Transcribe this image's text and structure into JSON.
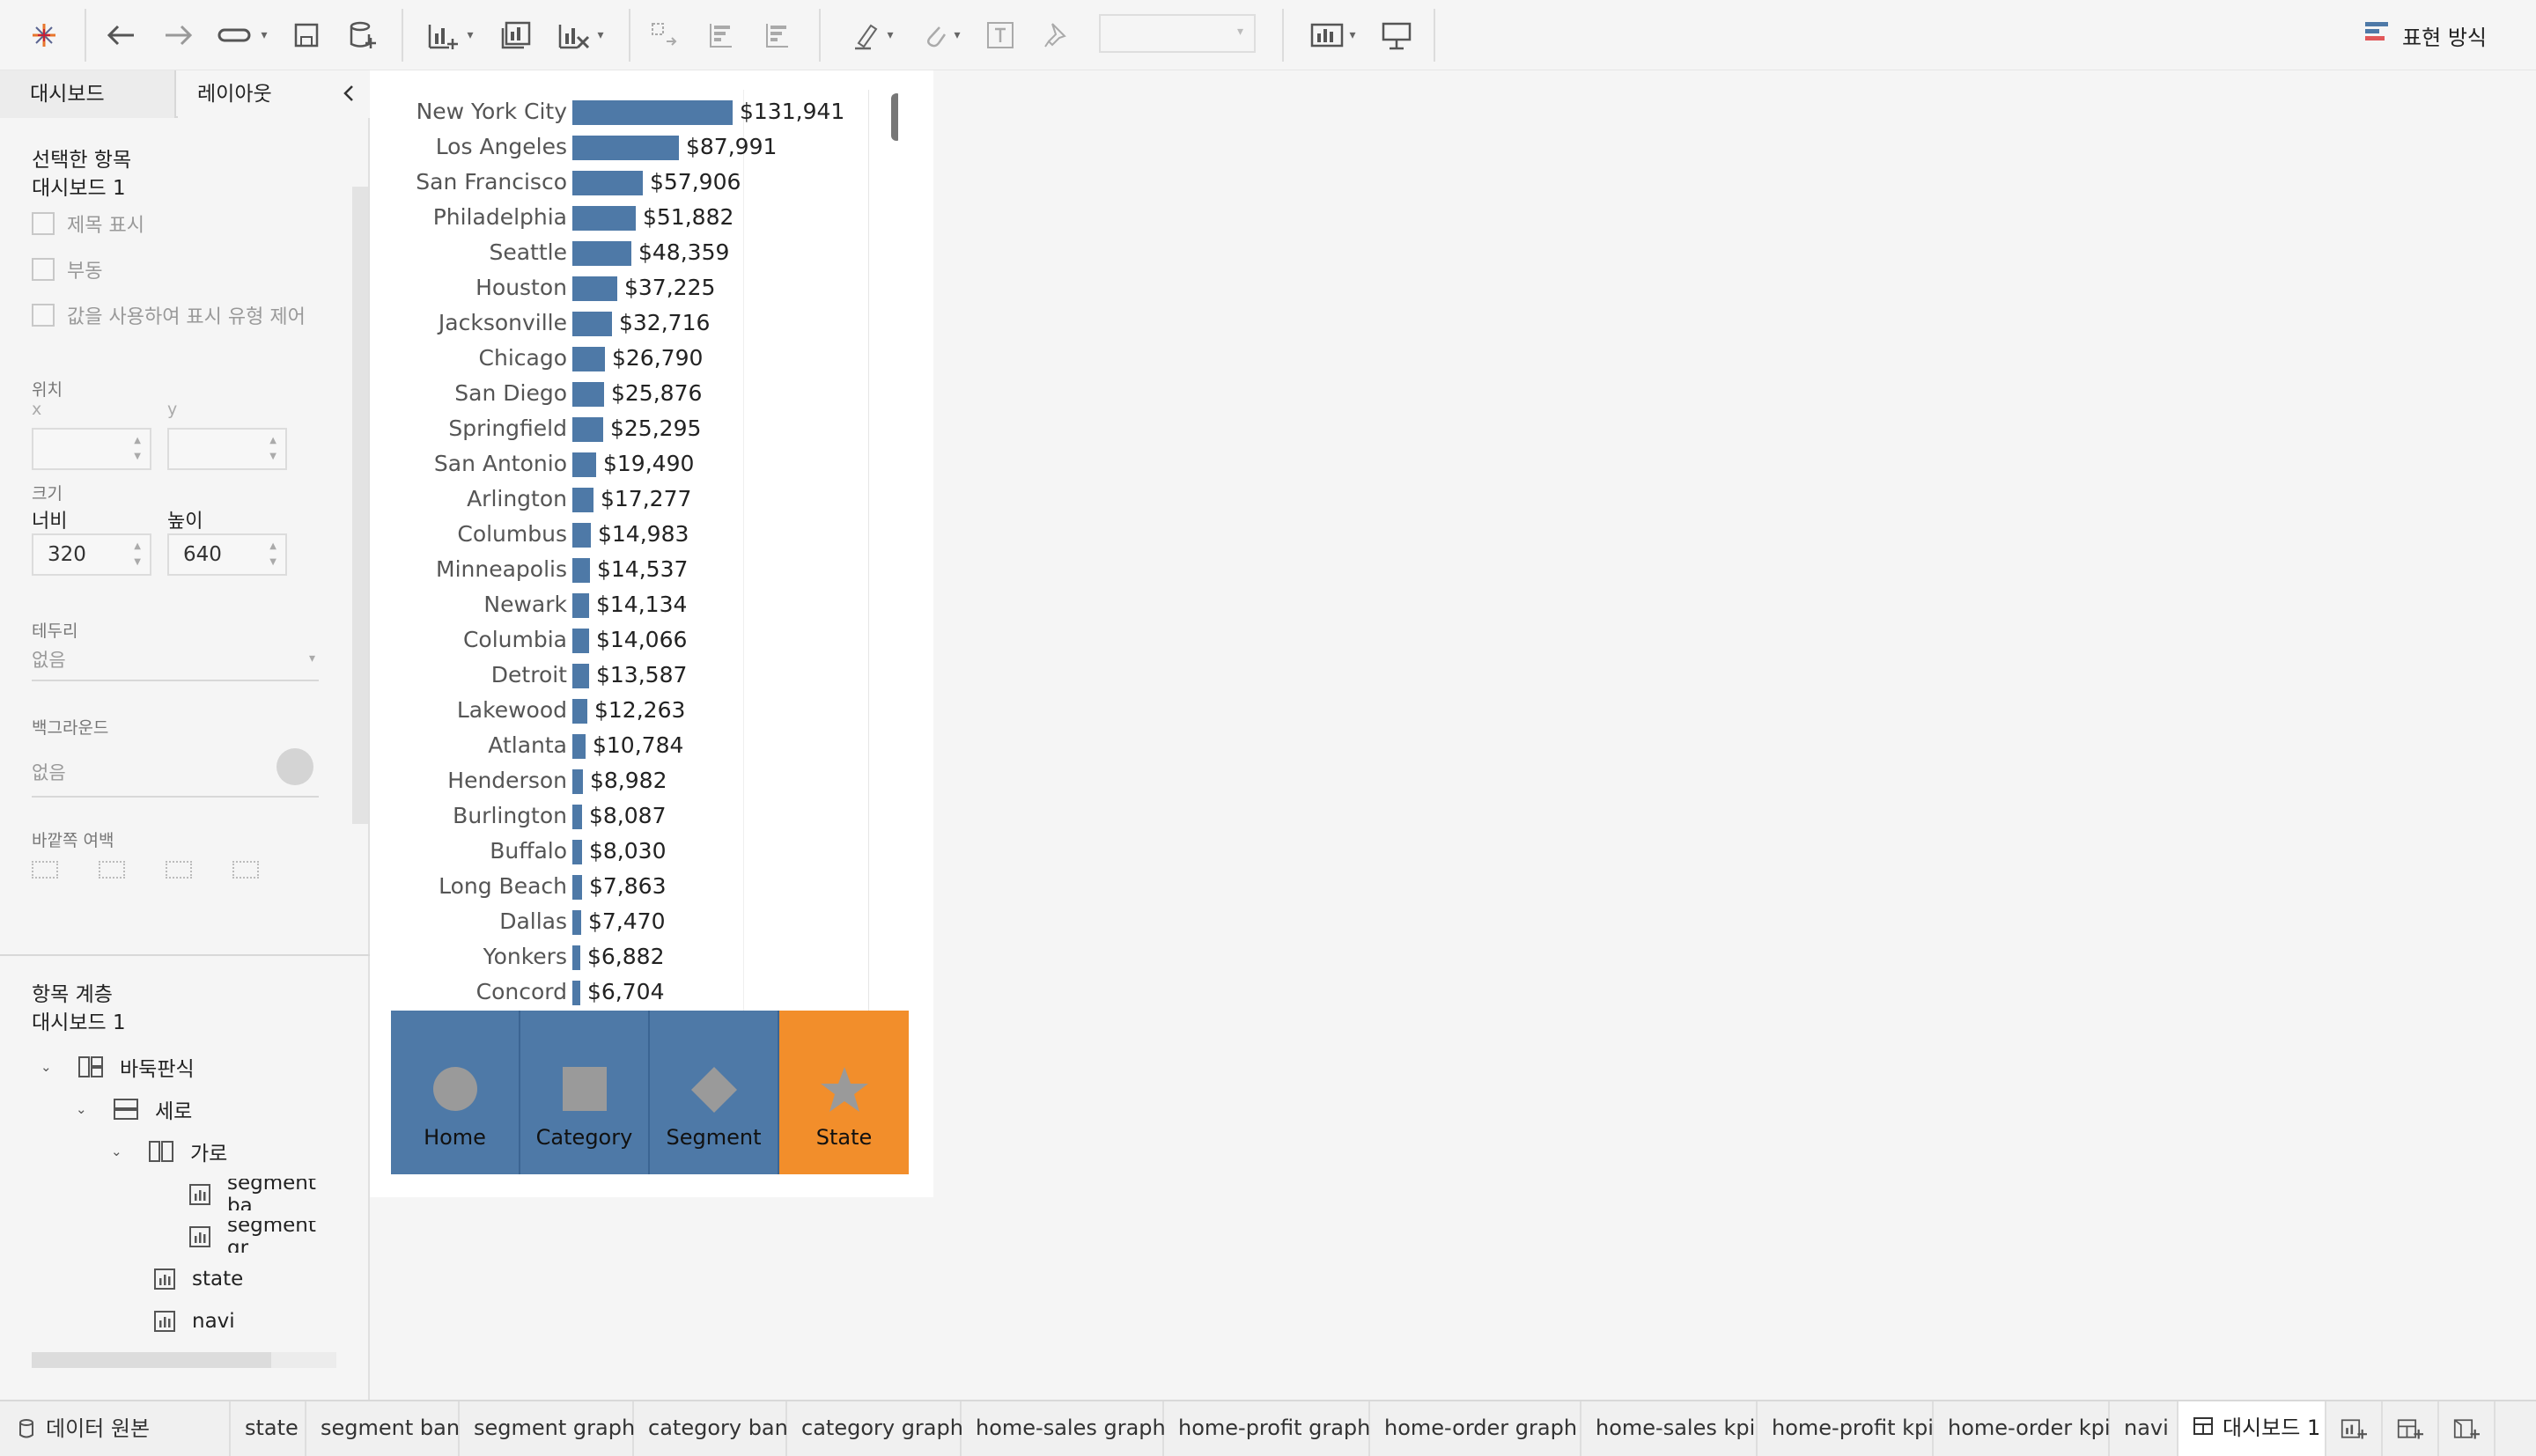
{
  "toolbar": {
    "show_me_label": "표현 방식"
  },
  "left_panel": {
    "tabs": [
      "대시보드",
      "레이아웃"
    ],
    "selected_item": {
      "title": "선택한 항목",
      "name": "대시보드 1",
      "checkboxes": [
        "제목 표시",
        "부동",
        "값을 사용하여 표시 유형 제어"
      ]
    },
    "position": {
      "label": "위치",
      "x_label": "x",
      "y_label": "y",
      "x_value": "",
      "y_value": ""
    },
    "size": {
      "label": "크기",
      "width_label": "너비",
      "height_label": "높이",
      "width_value": "320",
      "height_value": "640"
    },
    "border": {
      "label": "테두리",
      "value": "없음"
    },
    "background": {
      "label": "백그라운드",
      "value": "없음"
    },
    "outer_padding": {
      "label": "바깥쪽 여백"
    },
    "hierarchy": {
      "title": "항목 계층",
      "name": "대시보드 1",
      "items": [
        {
          "label": "바둑판식",
          "level": 0
        },
        {
          "label": "세로",
          "level": 1
        },
        {
          "label": "가로",
          "level": 2
        },
        {
          "label": "segment ba",
          "level": 3
        },
        {
          "label": "segment gr",
          "level": 3
        },
        {
          "label": "state",
          "level": 2
        },
        {
          "label": "navi",
          "level": 2
        }
      ]
    }
  },
  "chart_data": {
    "type": "bar",
    "orientation": "horizontal",
    "categories": [
      "New York City",
      "Los Angeles",
      "San Francisco",
      "Philadelphia",
      "Seattle",
      "Houston",
      "Jacksonville",
      "Chicago",
      "San Diego",
      "Springfield",
      "San Antonio",
      "Arlington",
      "Columbus",
      "Minneapolis",
      "Newark",
      "Columbia",
      "Detroit",
      "Lakewood",
      "Atlanta",
      "Henderson",
      "Burlington",
      "Buffalo",
      "Long Beach",
      "Dallas",
      "Yonkers",
      "Concord"
    ],
    "values": [
      131941,
      87991,
      57906,
      51882,
      48359,
      37225,
      32716,
      26790,
      25876,
      25295,
      19490,
      17277,
      14983,
      14537,
      14134,
      14066,
      13587,
      12263,
      10784,
      8982,
      8087,
      8030,
      7863,
      7470,
      6882,
      6704
    ],
    "labels": [
      "$131,941",
      "$87,991",
      "$57,906",
      "$51,882",
      "$48,359",
      "$37,225",
      "$32,716",
      "$26,790",
      "$25,876",
      "$25,295",
      "$19,490",
      "$17,277",
      "$14,983",
      "$14,537",
      "$14,134",
      "$14,066",
      "$13,587",
      "$12,263",
      "$10,784",
      "$8,982",
      "$8,087",
      "$8,030",
      "$7,863",
      "$7,470",
      "$6,882",
      "$6,704"
    ],
    "title": "",
    "xlabel": "",
    "ylabel": "",
    "xlim": [
      0,
      131941
    ],
    "grid": false,
    "bar_color": "#4e79a7"
  },
  "navigation": [
    {
      "label": "Home",
      "icon": "circle-icon",
      "active": false
    },
    {
      "label": "Category",
      "icon": "square-icon",
      "active": false
    },
    {
      "label": "Segment",
      "icon": "diamond-icon",
      "active": false
    },
    {
      "label": "State",
      "icon": "star-icon",
      "active": true
    }
  ],
  "colors": {
    "nav_default": "#4e79a7",
    "nav_active": "#f28e2b"
  },
  "sheet_tabs": {
    "data_source": "데이터 원본",
    "tabs": [
      "state",
      "segment ban",
      "segment graph",
      "category ban",
      "category graph",
      "home-sales graph",
      "home-profit graph",
      "home-order graph",
      "home-sales kpi",
      "home-profit kpi",
      "home-order kpi",
      "navi"
    ],
    "active_dashboard": "대시보드 1"
  }
}
